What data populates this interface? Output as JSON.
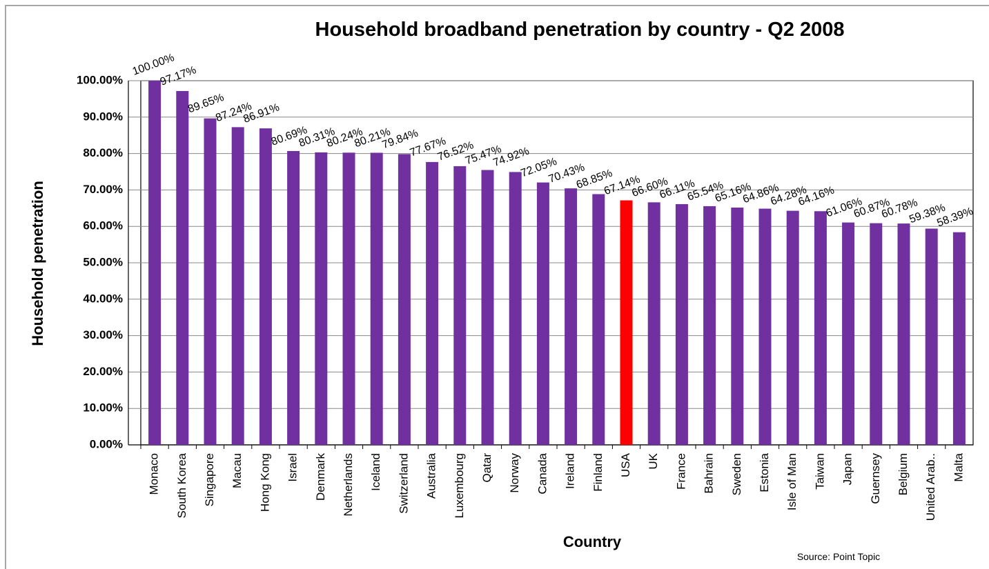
{
  "chart_data": {
    "type": "bar",
    "title": "Household broadband penetration by country - Q2 2008",
    "x_label": "Country",
    "y_label": "Household penetration",
    "source": "Source: Point Topic",
    "categories": [
      "Monaco",
      "South Korea",
      "Singapore",
      "Macau",
      "Hong Kong",
      "Israel",
      "Denmark",
      "Netherlands",
      "Iceland",
      "Switzerland",
      "Australia",
      "Luxembourg",
      "Qatar",
      "Norway",
      "Canada",
      "Ireland",
      "Finland",
      "USA",
      "UK",
      "France",
      "Bahrain",
      "Sweden",
      "Estonia",
      "Isle of Man",
      "Taiwan",
      "Japan",
      "Guernsey",
      "Belgium",
      "United Arab..",
      "Malta"
    ],
    "values": [
      100,
      97.17,
      89.65,
      87.24,
      86.91,
      80.69,
      80.31,
      80.24,
      80.21,
      79.84,
      77.67,
      76.52,
      75.47,
      74.92,
      72.05,
      70.43,
      68.85,
      67.14,
      66.6,
      66.11,
      65.54,
      65.16,
      64.86,
      64.28,
      64.16,
      61.06,
      60.87,
      60.78,
      59.38,
      58.39
    ],
    "value_labels": [
      "100.00%",
      "97.17%",
      "89.65%",
      "87.24%",
      "86.91%",
      "80.69%",
      "80.31%",
      "80.24%",
      "80.21%",
      "79.84%",
      "77.67%",
      "76.52%",
      "75.47%",
      "74.92%",
      "72.05%",
      "70.43%",
      "68.85%",
      "67.14%",
      "66.60%",
      "66.11%",
      "65.54%",
      "65.16%",
      "64.86%",
      "64.28%",
      "64.16%",
      "61.06%",
      "60.87%",
      "60.78%",
      "59.38%",
      "58.39%"
    ],
    "colors": [
      "#7030a0",
      "#7030a0",
      "#7030a0",
      "#7030a0",
      "#7030a0",
      "#7030a0",
      "#7030a0",
      "#7030a0",
      "#7030a0",
      "#7030a0",
      "#7030a0",
      "#7030a0",
      "#7030a0",
      "#7030a0",
      "#7030a0",
      "#7030a0",
      "#7030a0",
      "#ff0000",
      "#7030a0",
      "#7030a0",
      "#7030a0",
      "#7030a0",
      "#7030a0",
      "#7030a0",
      "#7030a0",
      "#7030a0",
      "#7030a0",
      "#7030a0",
      "#7030a0",
      "#7030a0"
    ],
    "ylim": [
      0,
      100
    ],
    "yticks": [
      {
        "value": 0,
        "label": "0.00%"
      },
      {
        "value": 10,
        "label": "10.00%"
      },
      {
        "value": 20,
        "label": "20.00%"
      },
      {
        "value": 30,
        "label": "30.00%"
      },
      {
        "value": 40,
        "label": "40.00%"
      },
      {
        "value": 50,
        "label": "50.00%"
      },
      {
        "value": 60,
        "label": "60.00%"
      },
      {
        "value": 70,
        "label": "70.00%"
      },
      {
        "value": 80,
        "label": "80.00%"
      },
      {
        "value": 90,
        "label": "90.00%"
      },
      {
        "value": 100,
        "label": "100.00%"
      }
    ],
    "grid": true
  }
}
